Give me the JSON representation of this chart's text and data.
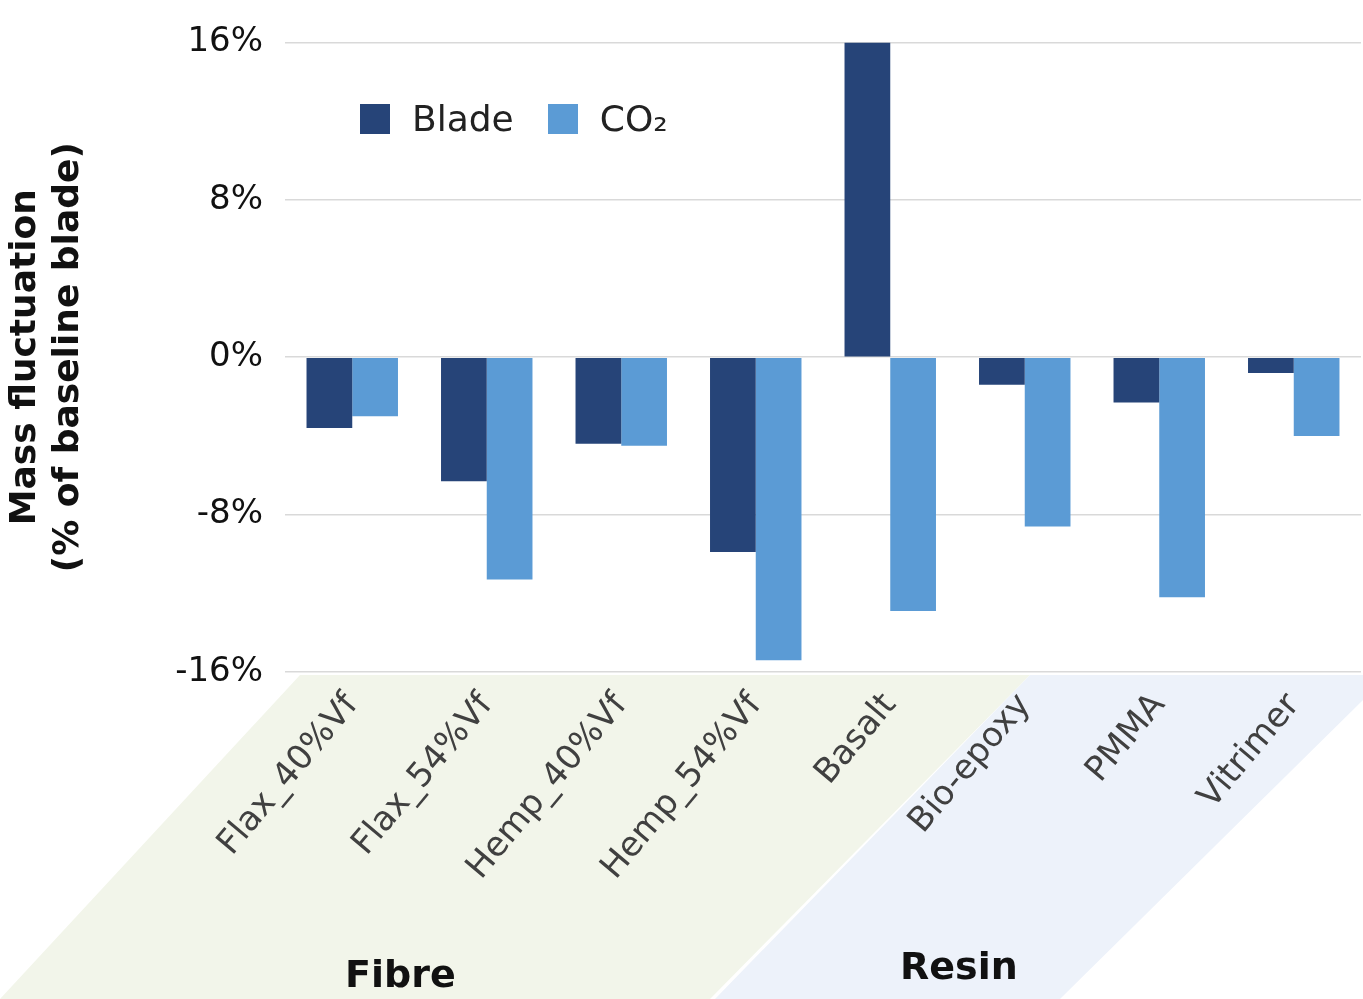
{
  "chart_data": {
    "type": "bar",
    "ylabel": "Mass fluctuation\n(% of baseline blade)",
    "categories": [
      "Flax_40%Vf",
      "Flax_54%Vf",
      "Hemp_40%Vf",
      "Hemp_54%Vf",
      "Basalt",
      "Bio-epoxy",
      "PMMA",
      "Vitrimer"
    ],
    "series": [
      {
        "name": "Blade",
        "color": "#264478",
        "values": [
          -3.6,
          -6.3,
          -4.4,
          -9.9,
          16.0,
          -1.4,
          -2.3,
          -0.8
        ]
      },
      {
        "name": "CO₂",
        "color": "#5b9bd5",
        "values": [
          -3.0,
          -11.3,
          -4.5,
          -15.4,
          -12.9,
          -8.6,
          -12.2,
          -4.0
        ]
      }
    ],
    "ylim": [
      -16,
      16
    ],
    "yticks": [
      {
        "value": -16,
        "label": "-16%"
      },
      {
        "value": -8,
        "label": "-8%"
      },
      {
        "value": 0,
        "label": "0%"
      },
      {
        "value": 8,
        "label": "8%"
      },
      {
        "value": 16,
        "label": "16%"
      }
    ],
    "grid": "y",
    "legend": "top left",
    "annotations": [
      "Fibre",
      "Resin"
    ]
  }
}
